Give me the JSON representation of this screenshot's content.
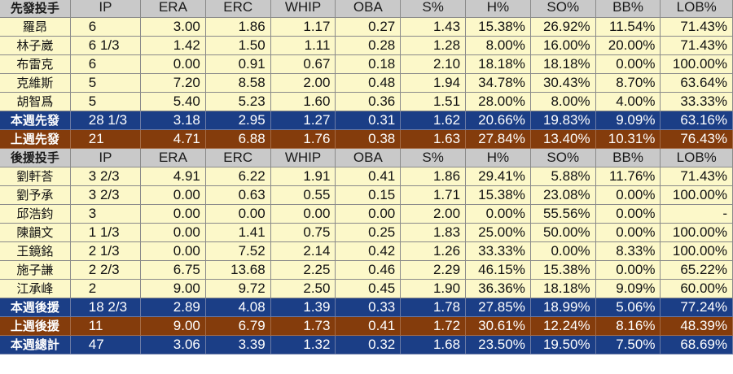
{
  "colors": {
    "header_bg": "#c9c9c9",
    "row_bg": "#fcf8c9",
    "this_week_bg": "#1b3e86",
    "last_week_bg": "#843c0c"
  },
  "starters": {
    "header": [
      "先發投手",
      "IP",
      "ERA",
      "ERC",
      "WHIP",
      "OBA",
      "S%",
      "H%",
      "SO%",
      "BB%",
      "LOB%"
    ],
    "rows": [
      [
        "羅昂",
        "6",
        "3.00",
        "1.86",
        "1.17",
        "0.27",
        "1.43",
        "15.38%",
        "26.92%",
        "11.54%",
        "71.43%"
      ],
      [
        "林子崴",
        "6 1/3",
        "1.42",
        "1.50",
        "1.11",
        "0.28",
        "1.28",
        "8.00%",
        "16.00%",
        "20.00%",
        "71.43%"
      ],
      [
        "布雷克",
        "6",
        "0.00",
        "0.91",
        "0.67",
        "0.18",
        "2.10",
        "18.18%",
        "18.18%",
        "0.00%",
        "100.00%"
      ],
      [
        "克維斯",
        "5",
        "7.20",
        "8.58",
        "2.00",
        "0.48",
        "1.94",
        "34.78%",
        "30.43%",
        "8.70%",
        "63.64%"
      ],
      [
        "胡智爲",
        "5",
        "5.40",
        "5.23",
        "1.60",
        "0.36",
        "1.51",
        "28.00%",
        "8.00%",
        "4.00%",
        "33.33%"
      ]
    ],
    "this_week": [
      "本週先發",
      "28 1/3",
      "3.18",
      "2.95",
      "1.27",
      "0.31",
      "1.62",
      "20.66%",
      "19.83%",
      "9.09%",
      "63.16%"
    ],
    "last_week": [
      "上週先發",
      "21",
      "4.71",
      "6.88",
      "1.76",
      "0.38",
      "1.63",
      "27.84%",
      "13.40%",
      "10.31%",
      "76.43%"
    ]
  },
  "relievers": {
    "header": [
      "後援投手",
      "IP",
      "ERA",
      "ERC",
      "WHIP",
      "OBA",
      "S%",
      "H%",
      "SO%",
      "BB%",
      "LOB%"
    ],
    "rows": [
      [
        "劉軒荅",
        "3 2/3",
        "4.91",
        "6.22",
        "1.91",
        "0.41",
        "1.86",
        "29.41%",
        "5.88%",
        "11.76%",
        "71.43%"
      ],
      [
        "劉予承",
        "3 2/3",
        "0.00",
        "0.63",
        "0.55",
        "0.15",
        "1.71",
        "15.38%",
        "23.08%",
        "0.00%",
        "100.00%"
      ],
      [
        "邱浩鈞",
        "3",
        "0.00",
        "0.00",
        "0.00",
        "0.00",
        "2.00",
        "0.00%",
        "55.56%",
        "0.00%",
        "-"
      ],
      [
        "陳韻文",
        "1 1/3",
        "0.00",
        "1.41",
        "0.75",
        "0.25",
        "1.83",
        "25.00%",
        "50.00%",
        "0.00%",
        "100.00%"
      ],
      [
        "王鏡銘",
        "2 1/3",
        "0.00",
        "7.52",
        "2.14",
        "0.42",
        "1.26",
        "33.33%",
        "0.00%",
        "8.33%",
        "100.00%"
      ],
      [
        "施子謙",
        "2 2/3",
        "6.75",
        "13.68",
        "2.25",
        "0.46",
        "2.29",
        "46.15%",
        "15.38%",
        "0.00%",
        "65.22%"
      ],
      [
        "江承峰",
        "2",
        "9.00",
        "9.72",
        "2.50",
        "0.45",
        "1.90",
        "36.36%",
        "18.18%",
        "9.09%",
        "60.00%"
      ]
    ],
    "this_week": [
      "本週後援",
      "18 2/3",
      "2.89",
      "4.08",
      "1.39",
      "0.33",
      "1.78",
      "27.85%",
      "18.99%",
      "5.06%",
      "77.24%"
    ],
    "last_week": [
      "上週後援",
      "11",
      "9.00",
      "6.79",
      "1.73",
      "0.41",
      "1.72",
      "30.61%",
      "12.24%",
      "8.16%",
      "48.39%"
    ]
  },
  "total": [
    "本週總計",
    "47",
    "3.06",
    "3.39",
    "1.32",
    "0.32",
    "1.68",
    "23.50%",
    "19.50%",
    "7.50%",
    "68.69%"
  ]
}
